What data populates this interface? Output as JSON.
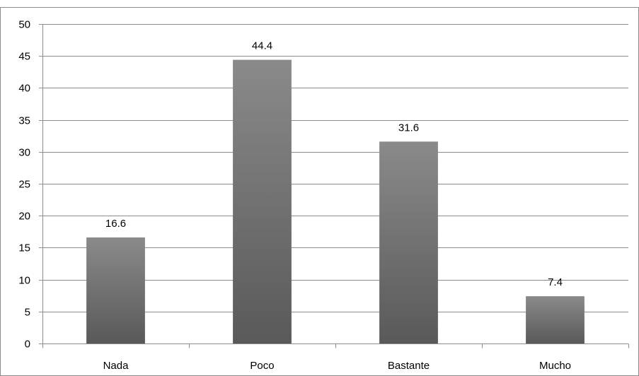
{
  "chart_data": {
    "type": "bar",
    "categories": [
      "Nada",
      "Poco",
      "Bastante",
      "Mucho"
    ],
    "values": [
      16.6,
      44.4,
      31.6,
      7.4
    ],
    "data_labels": [
      "16.6",
      "44.4",
      "31.6",
      "7.4"
    ],
    "title": "",
    "xlabel": "",
    "ylabel": "",
    "ylim": [
      0,
      50
    ],
    "y_ticks": [
      0,
      5,
      10,
      15,
      20,
      25,
      30,
      35,
      40,
      45,
      50
    ],
    "grid": true,
    "legend": "none",
    "colors": {
      "bar_light": "#8a8a8a",
      "bar_dark": "#595959",
      "grid": "#8c8c8c",
      "axis": "#8c8c8c",
      "frame": "#8c8c8c"
    }
  }
}
